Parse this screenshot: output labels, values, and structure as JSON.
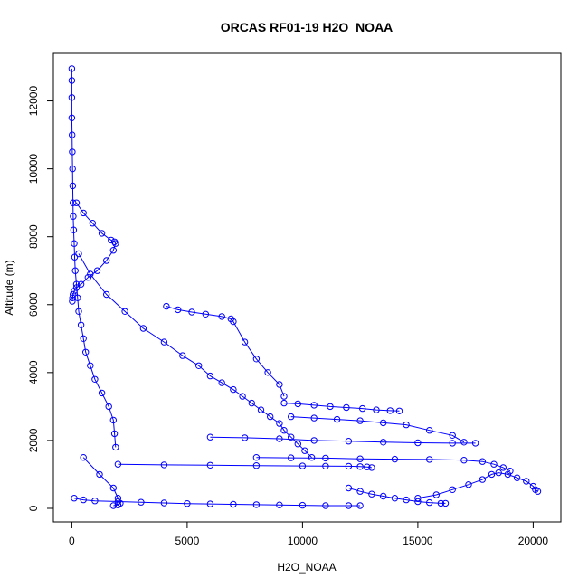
{
  "chart_data": {
    "type": "scatter",
    "title": "ORCAS RF01-19 H2O_NOAA",
    "xlabel": "H2O_NOAA",
    "ylabel": "Altitude (m)",
    "xlim": [
      -800,
      21200
    ],
    "ylim": [
      -400,
      13400
    ],
    "x_ticks": [
      0,
      5000,
      10000,
      15000,
      20000
    ],
    "x_tick_labels": [
      "0",
      "5000",
      "10000",
      "15000",
      "20000"
    ],
    "y_ticks": [
      0,
      2000,
      4000,
      6000,
      8000,
      10000,
      12000
    ],
    "y_tick_labels": [
      "0",
      "2000",
      "4000",
      "6000",
      "8000",
      "10000",
      "12000"
    ],
    "grid": false,
    "legend": "none",
    "color": "#0000ff",
    "marker": "open-circle",
    "connected": true,
    "series": [
      {
        "x": [
          0,
          0,
          0,
          0,
          10,
          20,
          30,
          40,
          50,
          60,
          80,
          100,
          120,
          150,
          200,
          250,
          300,
          400,
          500,
          600,
          800,
          1000,
          1300,
          1600,
          1800,
          1850,
          1900
        ],
        "y": [
          12950,
          12600,
          12100,
          11500,
          11000,
          10500,
          10000,
          9500,
          9000,
          8600,
          8200,
          7800,
          7400,
          7000,
          6600,
          6200,
          5800,
          5400,
          5000,
          4600,
          4200,
          3800,
          3400,
          3000,
          2600,
          2200,
          1800
        ]
      },
      {
        "x": [
          200,
          500,
          900,
          1300,
          1700,
          1850,
          1900,
          1800,
          1500,
          1100,
          700,
          400,
          200,
          100,
          50,
          30,
          20
        ],
        "y": [
          9000,
          8700,
          8400,
          8100,
          7900,
          7850,
          7800,
          7600,
          7300,
          7000,
          6800,
          6600,
          6500,
          6400,
          6300,
          6200,
          6100
        ]
      },
      {
        "x": [
          300,
          800,
          1500,
          2300,
          3100,
          4000,
          4800,
          5500,
          6000,
          6500,
          7000,
          7400,
          7800,
          8200,
          8600,
          9000,
          9200,
          9500,
          9800,
          10100,
          10400
        ],
        "y": [
          7500,
          6900,
          6300,
          5800,
          5300,
          4900,
          4500,
          4200,
          3900,
          3700,
          3500,
          3300,
          3100,
          2900,
          2700,
          2500,
          2300,
          2100,
          1900,
          1700,
          1500
        ]
      },
      {
        "x": [
          4100,
          4600,
          5200,
          5800,
          6500,
          6900,
          7000,
          7500,
          8000,
          8500,
          9000,
          9200
        ],
        "y": [
          5950,
          5850,
          5780,
          5720,
          5650,
          5580,
          5500,
          4900,
          4400,
          4000,
          3650,
          3300
        ]
      },
      {
        "x": [
          9200,
          9800,
          10500,
          11200,
          11900,
          12600,
          13200,
          13800,
          14200
        ],
        "y": [
          3100,
          3080,
          3040,
          3000,
          2970,
          2940,
          2900,
          2880,
          2870
        ]
      },
      {
        "x": [
          9500,
          10500,
          11500,
          12500,
          13500,
          14500,
          15500,
          16500,
          17000
        ],
        "y": [
          2700,
          2660,
          2620,
          2580,
          2520,
          2460,
          2300,
          2150,
          1950
        ]
      },
      {
        "x": [
          6000,
          7500,
          9000,
          10500,
          12000,
          13500,
          15000,
          16500,
          17500
        ],
        "y": [
          2100,
          2080,
          2050,
          2000,
          1980,
          1950,
          1930,
          1920,
          1920
        ]
      },
      {
        "x": [
          8000,
          9500,
          11000,
          12500,
          14000,
          15500,
          17000,
          17800,
          18300,
          18700,
          19000
        ],
        "y": [
          1500,
          1490,
          1480,
          1460,
          1450,
          1440,
          1420,
          1380,
          1300,
          1200,
          1100
        ]
      },
      {
        "x": [
          15000,
          15800,
          16500,
          17200,
          17800,
          18200,
          18500,
          18900,
          19300,
          19700,
          20000,
          20100,
          20200
        ],
        "y": [
          300,
          400,
          550,
          700,
          850,
          1000,
          1050,
          1000,
          900,
          800,
          650,
          550,
          500
        ]
      },
      {
        "x": [
          2000,
          4000,
          6000,
          8000,
          10000,
          11000,
          12000,
          12500,
          12800,
          13000
        ],
        "y": [
          1300,
          1280,
          1270,
          1260,
          1250,
          1245,
          1240,
          1230,
          1220,
          1200
        ]
      },
      {
        "x": [
          12000,
          12500,
          13000,
          13500,
          14000,
          14500,
          15000,
          15500,
          16000,
          16200
        ],
        "y": [
          600,
          500,
          420,
          360,
          300,
          250,
          200,
          170,
          150,
          150
        ]
      },
      {
        "x": [
          100,
          500,
          1000,
          2000,
          3000,
          4000,
          5000,
          6000,
          7000,
          8000,
          9000,
          10000,
          11000,
          12000,
          12500
        ],
        "y": [
          300,
          250,
          220,
          200,
          180,
          160,
          140,
          130,
          120,
          110,
          100,
          90,
          80,
          80,
          80
        ]
      },
      {
        "x": [
          500,
          1200,
          1800,
          2000,
          2100,
          2000,
          1800
        ],
        "y": [
          1500,
          1000,
          600,
          300,
          150,
          100,
          80
        ]
      }
    ]
  }
}
